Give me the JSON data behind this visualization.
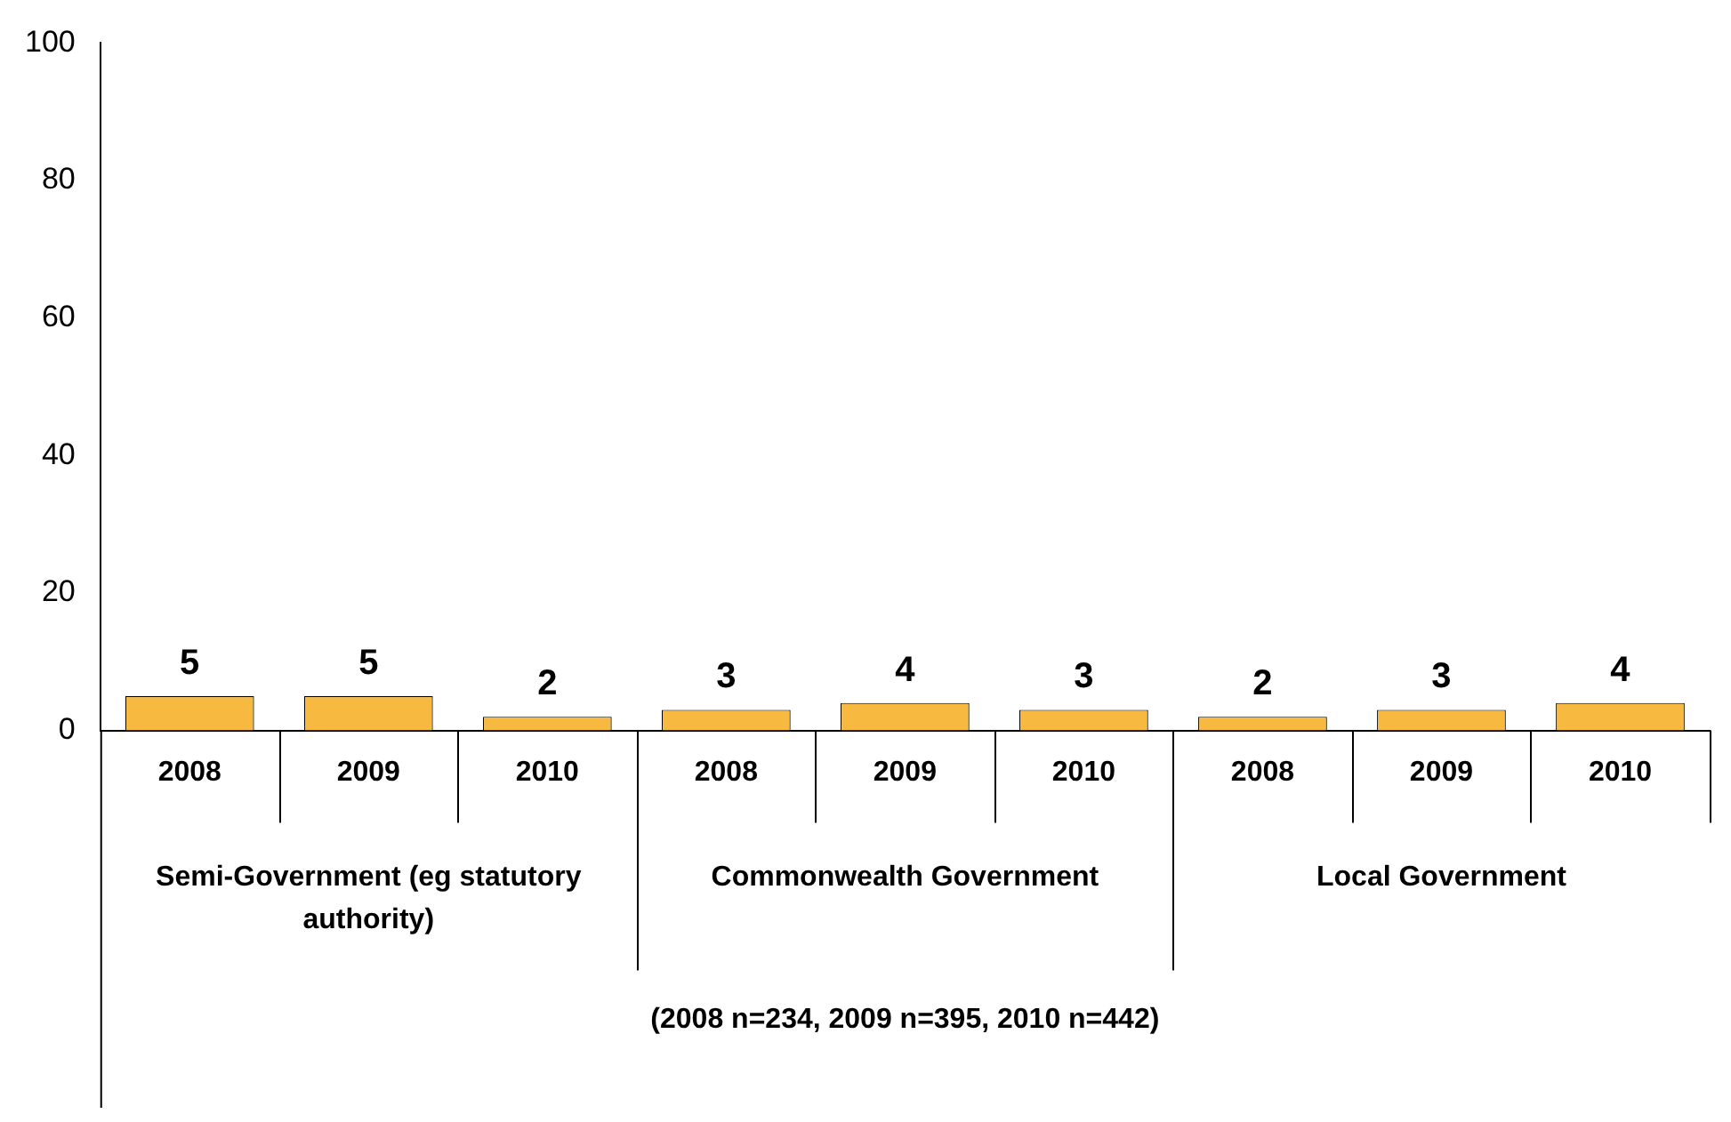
{
  "chart_data": {
    "type": "bar",
    "categories": [
      "2008",
      "2009",
      "2010",
      "2008",
      "2009",
      "2010",
      "2008",
      "2009",
      "2010"
    ],
    "values": [
      5,
      5,
      2,
      3,
      4,
      3,
      2,
      3,
      4
    ],
    "color": "#f7b93f",
    "ylim": [
      0,
      100
    ],
    "yticks": [
      0,
      20,
      40,
      60,
      80,
      100
    ],
    "grid": false,
    "legend": false,
    "data_labels": true,
    "annotations": [
      "Semi-Government (eg statutory authority)",
      "Commonwealth Government",
      "Local Government",
      "(2008 n=234, 2009 n=395, 2010 n=442)"
    ]
  }
}
